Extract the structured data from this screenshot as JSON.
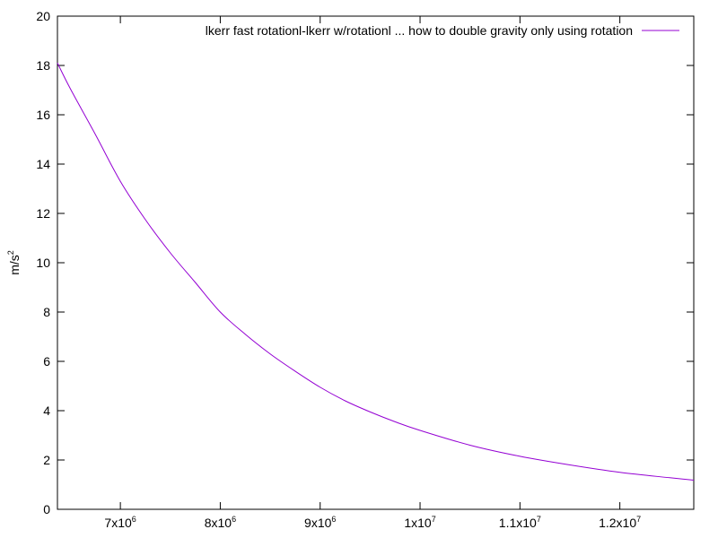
{
  "chart_data": {
    "type": "line",
    "title": "",
    "xlabel": "",
    "ylabel": "m/s",
    "ylabel_exponent": "2",
    "xlim": [
      6370000,
      12740000
    ],
    "ylim": [
      0,
      20
    ],
    "grid": false,
    "legend_position": "top-right",
    "x_ticks": [
      {
        "value": 7000000,
        "mantissa": "7x10",
        "exponent": "6"
      },
      {
        "value": 8000000,
        "mantissa": "8x10",
        "exponent": "6"
      },
      {
        "value": 9000000,
        "mantissa": "9x10",
        "exponent": "6"
      },
      {
        "value": 10000000,
        "mantissa": "1x10",
        "exponent": "7"
      },
      {
        "value": 11000000,
        "mantissa": "1.1x10",
        "exponent": "7"
      },
      {
        "value": 12000000,
        "mantissa": "1.2x10",
        "exponent": "7"
      }
    ],
    "y_ticks": [
      {
        "value": 0,
        "label": "0"
      },
      {
        "value": 2,
        "label": "2"
      },
      {
        "value": 4,
        "label": "4"
      },
      {
        "value": 6,
        "label": "6"
      },
      {
        "value": 8,
        "label": "8"
      },
      {
        "value": 10,
        "label": "10"
      },
      {
        "value": 12,
        "label": "12"
      },
      {
        "value": 14,
        "label": "14"
      },
      {
        "value": 16,
        "label": "16"
      },
      {
        "value": 18,
        "label": "18"
      },
      {
        "value": 20,
        "label": "20"
      }
    ],
    "series": [
      {
        "name": "lkerr fast rotationl-lkerr w/rotationl ... how to double gravity only using rotation",
        "color": "#9400d3",
        "points": [
          {
            "x": 6370000,
            "y": 18.1
          },
          {
            "x": 6500000,
            "y": 17.05
          },
          {
            "x": 6750000,
            "y": 15.2
          },
          {
            "x": 7000000,
            "y": 13.3
          },
          {
            "x": 7250000,
            "y": 11.75
          },
          {
            "x": 7500000,
            "y": 10.4
          },
          {
            "x": 7750000,
            "y": 9.2
          },
          {
            "x": 8000000,
            "y": 8.0
          },
          {
            "x": 8250000,
            "y": 7.1
          },
          {
            "x": 8500000,
            "y": 6.3
          },
          {
            "x": 8750000,
            "y": 5.6
          },
          {
            "x": 9000000,
            "y": 4.95
          },
          {
            "x": 9250000,
            "y": 4.4
          },
          {
            "x": 9500000,
            "y": 3.95
          },
          {
            "x": 9750000,
            "y": 3.55
          },
          {
            "x": 10000000,
            "y": 3.2
          },
          {
            "x": 10500000,
            "y": 2.6
          },
          {
            "x": 11000000,
            "y": 2.15
          },
          {
            "x": 11500000,
            "y": 1.8
          },
          {
            "x": 12000000,
            "y": 1.5
          },
          {
            "x": 12500000,
            "y": 1.28
          },
          {
            "x": 12740000,
            "y": 1.18
          }
        ]
      }
    ]
  }
}
